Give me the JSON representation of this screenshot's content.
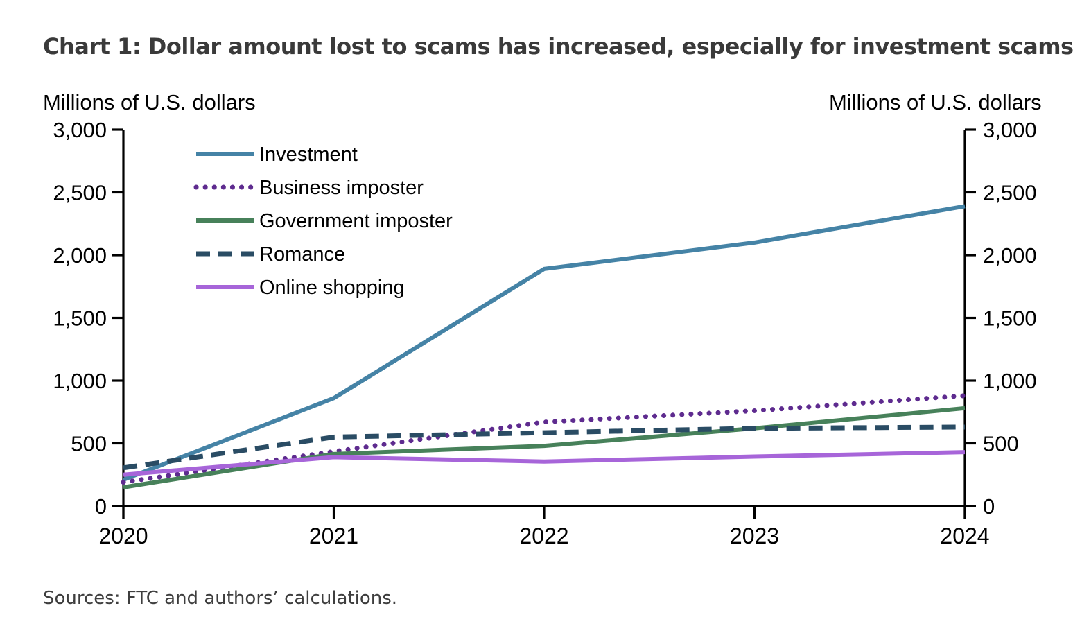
{
  "title": "Chart 1: Dollar amount lost to scams has increased, especially for investment scams",
  "axis_label_left": "Millions of U.S. dollars",
  "axis_label_right": "Millions of U.S. dollars",
  "sources": "Sources: FTC and authors’ calculations.",
  "chart_data": {
    "type": "line",
    "title": "Chart 1: Dollar amount lost to scams has increased, especially for investment scams",
    "ylabel": "Millions of U.S. dollars",
    "ylabel_right": "Millions of U.S. dollars",
    "xlabel": "",
    "ylim": [
      0,
      3000
    ],
    "ytick_values": [
      0,
      500,
      1000,
      1500,
      2000,
      2500,
      3000
    ],
    "ytick_labels": [
      "0",
      "500",
      "1,000",
      "1,500",
      "2,000",
      "2,500",
      "3,000"
    ],
    "x_labels": [
      "2020",
      "2021",
      "2022",
      "2023",
      "2024"
    ],
    "x": [
      2020,
      2021,
      2022,
      2023,
      2024
    ],
    "grid": "off",
    "legend_position": "inside-top-left",
    "series": [
      {
        "name": "Investment",
        "color": "#4583a6",
        "style": "solid",
        "values": [
          210,
          860,
          1890,
          2100,
          2390
        ]
      },
      {
        "name": "Business imposter",
        "color": "#5e2b8f",
        "style": "dotted",
        "values": [
          190,
          435,
          670,
          760,
          880
        ]
      },
      {
        "name": "Government imposter",
        "color": "#47815a",
        "style": "solid",
        "values": [
          150,
          415,
          480,
          620,
          780
        ]
      },
      {
        "name": "Romance",
        "color": "#2a4c64",
        "style": "dashed",
        "values": [
          305,
          550,
          585,
          620,
          630
        ]
      },
      {
        "name": "Online shopping",
        "color": "#a765d9",
        "style": "solid",
        "values": [
          250,
          390,
          355,
          395,
          430
        ]
      }
    ]
  }
}
